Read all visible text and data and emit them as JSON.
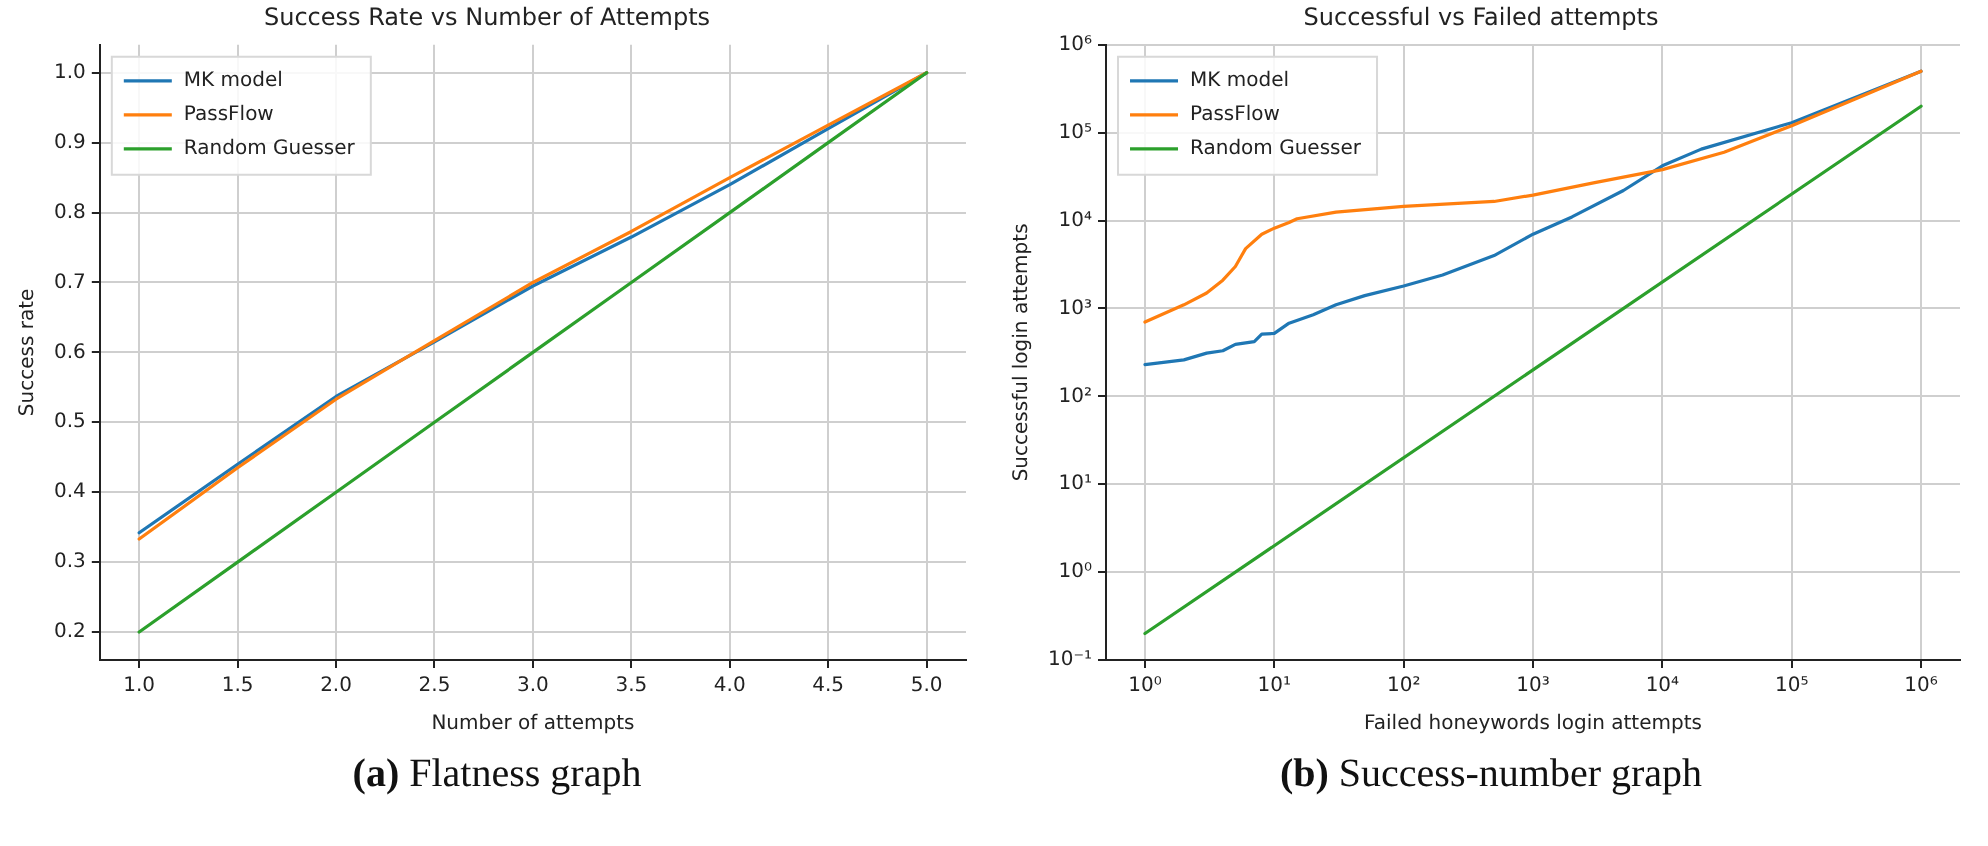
{
  "chart_data": [
    {
      "type": "line",
      "title": "Success Rate vs Number of Attempts",
      "xlabel": "Number of attempts",
      "ylabel": "Success rate",
      "annotations": [
        "(a) Flatness graph"
      ],
      "x": [
        1,
        1.5,
        2,
        2.5,
        3,
        3.5,
        4,
        4.5,
        5
      ],
      "series": [
        {
          "name": "MK model",
          "color": "#1f77b4",
          "values": [
            0.342,
            0.44,
            0.537,
            0.615,
            0.695,
            0.765,
            0.84,
            0.92,
            1.0
          ]
        },
        {
          "name": "PassFlow",
          "color": "#ff7f0e",
          "values": [
            0.333,
            0.435,
            0.533,
            0.617,
            0.7,
            0.773,
            0.85,
            0.925,
            1.0
          ]
        },
        {
          "name": "Random Guesser",
          "color": "#2ca02c",
          "values": [
            0.2,
            0.3,
            0.4,
            0.5,
            0.6,
            0.7,
            0.8,
            0.9,
            1.0
          ]
        }
      ],
      "xlim": [
        0.8,
        5.2
      ],
      "xticks": [
        {
          "value": 1,
          "label": "1.0"
        },
        1.5,
        {
          "value": 2,
          "label": "2.0"
        },
        2.5,
        {
          "value": 3,
          "label": "3.0"
        },
        3.5,
        {
          "value": 4,
          "label": "4.0"
        },
        4.5,
        {
          "value": 5,
          "label": "5.0"
        }
      ],
      "ylim": [
        0.16,
        1.04
      ],
      "yticks": [
        0.2,
        0.3,
        0.4,
        0.5,
        0.6,
        0.7,
        0.8,
        0.9,
        {
          "value": 1,
          "label": "1.0"
        }
      ],
      "grid": true,
      "legend": "top left",
      "marker": "none",
      "line_style": "solid"
    },
    {
      "type": "line",
      "title": "Successful vs Failed attempts",
      "xlabel": "Failed honeywords login attempts",
      "ylabel": "Successful login attempts",
      "annotations": [
        "(b) Success-number graph"
      ],
      "series": [
        {
          "name": "MK model",
          "color": "#1f77b4",
          "x": [
            1,
            2,
            3,
            4,
            5,
            7,
            8,
            10,
            13,
            20,
            30,
            50,
            100,
            200,
            500,
            1000,
            2000,
            5000,
            10000,
            20000,
            100000,
            1000000
          ],
          "values": [
            230,
            260,
            310,
            330,
            390,
            420,
            510,
            520,
            680,
            850,
            1100,
            1400,
            1800,
            2400,
            4000,
            7000,
            11000,
            22000,
            42000,
            65000,
            130000,
            500000
          ]
        },
        {
          "name": "PassFlow",
          "color": "#ff7f0e",
          "x": [
            1,
            2,
            3,
            4,
            5,
            6,
            8,
            10,
            13,
            15,
            30,
            100,
            500,
            1000,
            3000,
            10000,
            30000,
            100000,
            1000000
          ],
          "values": [
            700,
            1100,
            1500,
            2100,
            3000,
            4800,
            7000,
            8200,
            9500,
            10500,
            12500,
            14500,
            16500,
            19500,
            27000,
            38000,
            60000,
            120000,
            500000
          ]
        },
        {
          "name": "Random Guesser",
          "color": "#2ca02c",
          "x": [
            1,
            1000000
          ],
          "values": [
            0.2,
            200000
          ]
        }
      ],
      "log": "xy",
      "xlim": [
        0.5,
        2000000
      ],
      "xticks": [
        {
          "value": 1,
          "label": "10⁰"
        },
        {
          "value": 10,
          "label": "10¹"
        },
        {
          "value": 100,
          "label": "10²"
        },
        {
          "value": 1000,
          "label": "10³"
        },
        {
          "value": 10000,
          "label": "10⁴"
        },
        {
          "value": 100000,
          "label": "10⁵"
        },
        {
          "value": 1000000,
          "label": "10⁶"
        }
      ],
      "ylim": [
        0.1,
        1000000
      ],
      "yticks": [
        {
          "value": 0.1,
          "label": "10⁻¹"
        },
        {
          "value": 1,
          "label": "10⁰"
        },
        {
          "value": 10,
          "label": "10¹"
        },
        {
          "value": 100,
          "label": "10²"
        },
        {
          "value": 1000,
          "label": "10³"
        },
        {
          "value": 10000,
          "label": "10⁴"
        },
        {
          "value": 100000,
          "label": "10⁵"
        },
        {
          "value": 1000000,
          "label": "10⁶"
        }
      ],
      "grid": true,
      "legend": "top left",
      "marker": "none",
      "line_style": "solid"
    }
  ]
}
